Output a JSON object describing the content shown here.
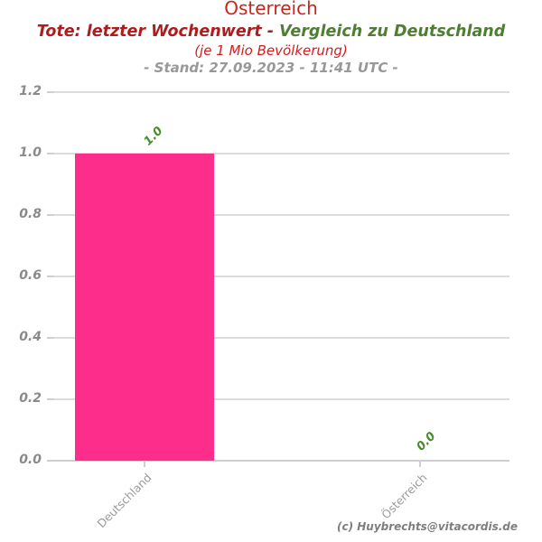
{
  "header": {
    "title": "Österreich",
    "subtitle_red": "Tote: letzter Wochenwert - ",
    "subtitle_green": "Vergleich zu Deutschland",
    "subtitle2": "(je 1 Mio Bevölkerung)",
    "stand_line": "- Stand: 27.09.2023 - 11:41 UTC -"
  },
  "footer": {
    "credit": "(c) Huybrechts@vitacordis.de"
  },
  "colors": {
    "title_red": "#c5271d",
    "subtitle_red": "#ad1d1d",
    "subtitle_green": "#4e7e32",
    "subtitle2_red": "#cd2121",
    "stand_gray": "#989898",
    "axis_label_gray": "#8a8a8a",
    "category_label_gray": "#9a9a9a",
    "footer_gray": "#7e7e7e",
    "gridline_gray": "#dcdcdc",
    "bar_pink": "#fd2d8c",
    "value_label_green": "#478a29"
  },
  "chart_data": {
    "type": "bar",
    "title": "Österreich",
    "subtitle": "Tote: letzter Wochenwert - Vergleich zu Deutschland",
    "subtitle2": "(je 1 Mio Bevölkerung)",
    "timestamp": "- Stand: 27.09.2023 - 11:41 UTC -",
    "categories": [
      "Deutschland",
      "Österreich"
    ],
    "values": [
      1.0,
      0.0
    ],
    "bar_labels": [
      "1.0",
      "0.0"
    ],
    "bar_color": "#fd2d8c",
    "xlabel": "",
    "ylabel": "",
    "ylim": [
      0,
      1.2
    ],
    "yticks": [
      0.0,
      0.2,
      0.4,
      0.6,
      0.8,
      1.0,
      1.2
    ],
    "ytick_labels_top_to_bottom": [
      "1.2",
      "1.0",
      "0.8",
      "0.6",
      "0.4",
      "0.2",
      "0.0"
    ],
    "grid": true,
    "legend_position": "none"
  }
}
